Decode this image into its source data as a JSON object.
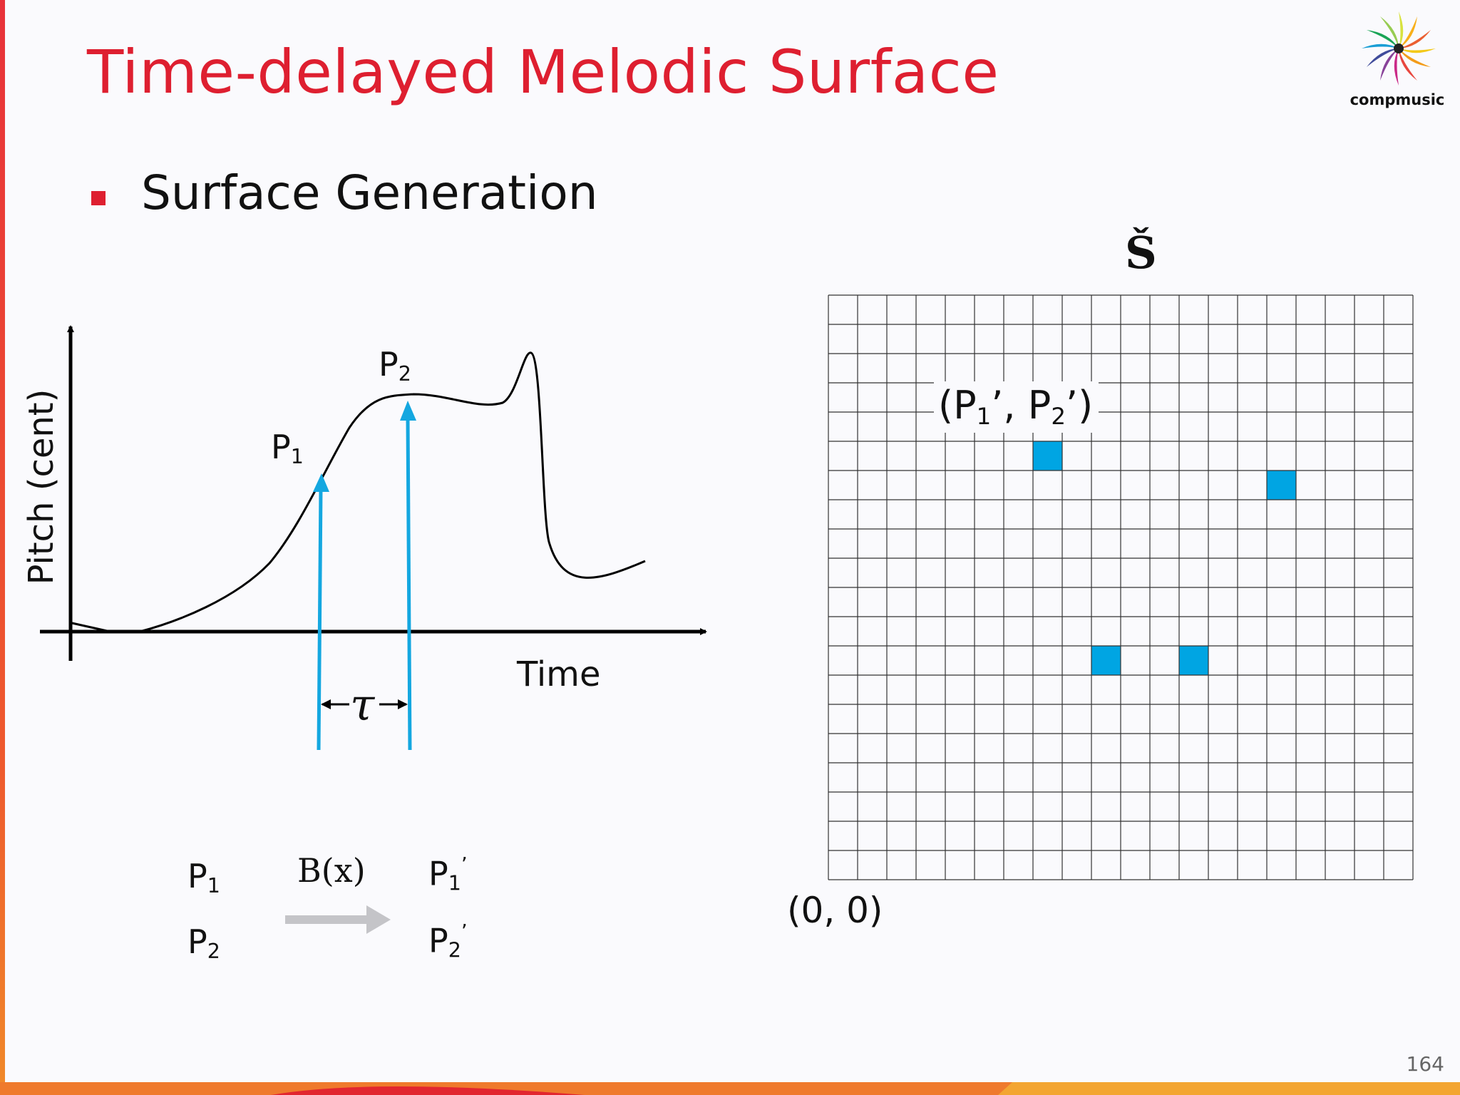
{
  "title": "Time-delayed Melodic Surface",
  "bullet": "Surface Generation",
  "logo_text": "compmusic",
  "page_number": "164",
  "plot": {
    "y_axis_label": "Pitch (cent)",
    "x_axis_label": "Time",
    "point1": "P",
    "point1_sub": "1",
    "point2": "P",
    "point2_sub": "2",
    "delay_symbol": "τ"
  },
  "mapping": {
    "function": "B(x)",
    "in1": "P",
    "in1_sub": "1",
    "in2": "P",
    "in2_sub": "2",
    "out1": "P",
    "out1_sub": "1",
    "out1_sup": "’",
    "out2": "P",
    "out2_sub": "2",
    "out2_sup": "’"
  },
  "surface": {
    "symbol": "Š",
    "origin_label": "(0, 0)",
    "coord_label_open": "(P",
    "coord_label_sub1": "1",
    "coord_label_mid": "’, P",
    "coord_label_sub2": "2",
    "coord_label_close": "’)",
    "filled_cells": [
      [
        7,
        14
      ],
      [
        15,
        13
      ],
      [
        9,
        7
      ],
      [
        12,
        7
      ]
    ],
    "fill_color": "#00a5e3",
    "grid_color": "#333333"
  },
  "colors": {
    "title": "#de1f30",
    "accent_arrow": "#14a7e0",
    "mapping_arrow": "#c4c4c8"
  }
}
